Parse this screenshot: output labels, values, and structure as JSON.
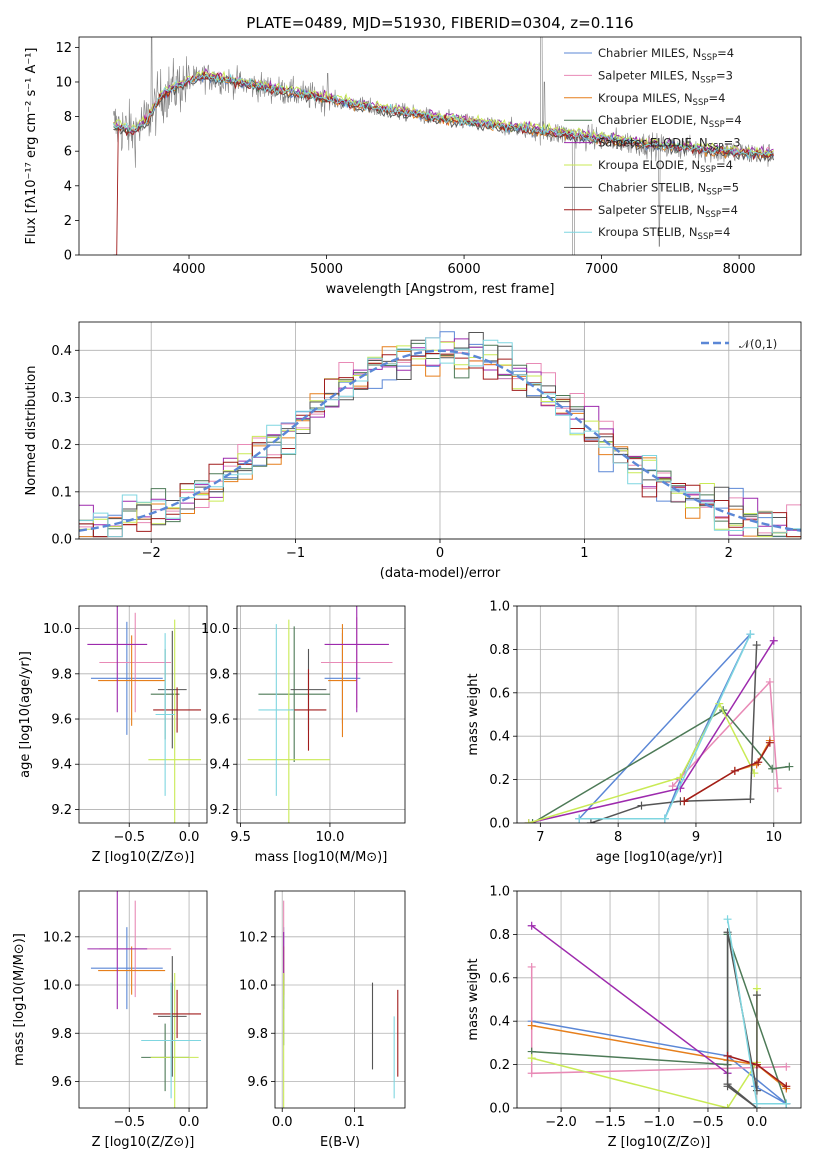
{
  "figure": {
    "title": "PLATE=0489, MJD=51930, FIBERID=0304, z=0.116"
  },
  "colors": {
    "chabrier_miles": "#5b87d6",
    "salpeter_miles": "#e88ab6",
    "kroupa_miles": "#e67f1c",
    "chabrier_elodie": "#4d7a57",
    "salpeter_elodie": "#9d2aad",
    "kroupa_elodie": "#c9ea55",
    "chabrier_stelib": "#555555",
    "salpeter_stelib": "#a01c1c",
    "kroupa_stelib": "#7fd6e0",
    "data": "#808080",
    "gauss": "#5b87d6"
  },
  "chart_data": [
    {
      "id": "spectrum",
      "type": "line",
      "title": "PLATE=0489, MJD=51930, FIBERID=0304, z=0.116",
      "xlabel": "wavelength [Angstrom, rest frame]",
      "ylabel": "Flux [fλ10⁻¹⁷ erg cm⁻² s⁻¹ A⁻¹]",
      "xlim": [
        3200,
        8450
      ],
      "ylim": [
        0,
        12.6
      ],
      "xticks": [
        4000,
        5000,
        6000,
        7000,
        8000
      ],
      "yticks": [
        0,
        2,
        4,
        6,
        8,
        10,
        12
      ],
      "grid": false,
      "legend_placement": "top-right",
      "continuum": {
        "x": [
          3450,
          3600,
          3700,
          3800,
          3900,
          4000,
          4100,
          4200,
          4400,
          4600,
          4800,
          5000,
          5200,
          5400,
          5600,
          5800,
          6000,
          6200,
          6400,
          6600,
          6800,
          7000,
          7200,
          7400,
          7600,
          7800,
          8000,
          8200
        ],
        "y": [
          7.5,
          7.1,
          7.8,
          9.2,
          9.7,
          10.0,
          10.3,
          10.2,
          9.9,
          9.6,
          9.3,
          9.0,
          8.7,
          8.4,
          8.2,
          7.9,
          7.7,
          7.5,
          7.3,
          7.1,
          6.9,
          6.7,
          6.5,
          6.3,
          6.2,
          6.0,
          5.9,
          5.8
        ]
      },
      "series": [
        {
          "name": "Chabrier MILES, N_SSP=4",
          "color_key": "chabrier_miles"
        },
        {
          "name": "Salpeter MILES, N_SSP=3",
          "color_key": "salpeter_miles"
        },
        {
          "name": "Kroupa MILES, N_SSP=4",
          "color_key": "kroupa_miles"
        },
        {
          "name": "Chabrier ELODIE, N_SSP=4",
          "color_key": "chabrier_elodie"
        },
        {
          "name": "Salpeter ELODIE, N_SSP=3",
          "color_key": "salpeter_elodie"
        },
        {
          "name": "Kroupa ELODIE, N_SSP=4",
          "color_key": "kroupa_elodie"
        },
        {
          "name": "Chabrier STELIB, N_SSP=5",
          "color_key": "chabrier_stelib"
        },
        {
          "name": "Salpeter STELIB, N_SSP=4",
          "color_key": "salpeter_stelib"
        },
        {
          "name": "Kroupa STELIB, N_SSP=4",
          "color_key": "kroupa_stelib"
        }
      ]
    },
    {
      "id": "residuals",
      "type": "histogram",
      "xlabel": "(data-model)/error",
      "ylabel": "Normed distribution",
      "xlim": [
        -2.5,
        2.5
      ],
      "ylim": [
        0,
        0.46
      ],
      "xticks": [
        -2,
        -1,
        0,
        1,
        2
      ],
      "yticks": [
        0.0,
        0.1,
        0.2,
        0.3,
        0.4
      ],
      "grid": true,
      "legend_placement": "top-right",
      "legend_label": "𝒩(0,1)",
      "gaussian": {
        "mean": 0,
        "sigma": 1,
        "scale": 0.399
      }
    },
    {
      "id": "age_metal",
      "type": "errorbar",
      "xlabel": "Z [log10(Z/Z⊙)]",
      "ylabel": "age [log10(age/yr)]",
      "xlim": [
        -0.92,
        0.15
      ],
      "ylim": [
        9.14,
        10.1
      ],
      "xticks": [
        -0.5,
        0.0
      ],
      "yticks": [
        9.2,
        9.4,
        9.6,
        9.8,
        10.0
      ],
      "grid": true,
      "points": [
        {
          "x": -0.52,
          "y": 9.78,
          "xerr": 0.3,
          "yerr": 0.25,
          "color_key": "chabrier_miles"
        },
        {
          "x": -0.45,
          "y": 9.85,
          "xerr": 0.3,
          "yerr": 0.22,
          "color_key": "salpeter_miles"
        },
        {
          "x": -0.48,
          "y": 9.77,
          "xerr": 0.28,
          "yerr": 0.2,
          "color_key": "kroupa_miles"
        },
        {
          "x": -0.2,
          "y": 9.71,
          "xerr": 0.12,
          "yerr": 0.2,
          "color_key": "chabrier_elodie"
        },
        {
          "x": -0.6,
          "y": 9.93,
          "xerr": 0.25,
          "yerr": 0.3,
          "color_key": "salpeter_elodie"
        },
        {
          "x": -0.12,
          "y": 9.42,
          "xerr": 0.22,
          "yerr": 0.62,
          "color_key": "kroupa_elodie"
        },
        {
          "x": -0.14,
          "y": 9.73,
          "xerr": 0.12,
          "yerr": 0.26,
          "color_key": "chabrier_stelib"
        },
        {
          "x": -0.1,
          "y": 9.64,
          "xerr": 0.2,
          "yerr": 0.1,
          "color_key": "salpeter_stelib"
        },
        {
          "x": -0.2,
          "y": 9.62,
          "xerr": 0.08,
          "yerr": 0.36,
          "color_key": "kroupa_stelib"
        }
      ]
    },
    {
      "id": "age_mass",
      "type": "errorbar",
      "xlabel": "mass [log10(M/M⊙)]",
      "ylabel": "",
      "xlim": [
        9.48,
        10.42
      ],
      "ylim": [
        9.14,
        10.1
      ],
      "xticks": [
        9.5,
        10.0
      ],
      "yticks": [
        9.2,
        9.4,
        9.6,
        9.8,
        10.0
      ],
      "grid": true,
      "points": [
        {
          "x": 10.07,
          "y": 9.78,
          "xerr": 0.1,
          "yerr": 0.2,
          "color_key": "chabrier_miles"
        },
        {
          "x": 10.15,
          "y": 9.85,
          "xerr": 0.2,
          "yerr": 0.2,
          "color_key": "salpeter_miles"
        },
        {
          "x": 10.07,
          "y": 9.77,
          "xerr": 0.08,
          "yerr": 0.25,
          "color_key": "kroupa_miles"
        },
        {
          "x": 9.8,
          "y": 9.71,
          "xerr": 0.2,
          "yerr": 0.3,
          "color_key": "chabrier_elodie"
        },
        {
          "x": 10.15,
          "y": 9.93,
          "xerr": 0.18,
          "yerr": 0.3,
          "color_key": "salpeter_elodie"
        },
        {
          "x": 9.77,
          "y": 9.42,
          "xerr": 0.23,
          "yerr": 0.62,
          "color_key": "kroupa_elodie"
        },
        {
          "x": 9.88,
          "y": 9.73,
          "xerr": 0.1,
          "yerr": 0.18,
          "color_key": "chabrier_stelib"
        },
        {
          "x": 9.88,
          "y": 9.64,
          "xerr": 0.1,
          "yerr": 0.18,
          "color_key": "salpeter_stelib"
        },
        {
          "x": 9.7,
          "y": 9.64,
          "xerr": 0.1,
          "yerr": 0.38,
          "color_key": "kroupa_stelib"
        }
      ]
    },
    {
      "id": "weight_age",
      "type": "line",
      "xlabel": "age [log10(age/yr)]",
      "ylabel": "mass weight",
      "xlim": [
        6.7,
        10.35
      ],
      "ylim": [
        0,
        1.0
      ],
      "xticks": [
        7,
        8,
        9,
        10
      ],
      "yticks": [
        0.0,
        0.2,
        0.4,
        0.6,
        0.8,
        1.0
      ],
      "grid": true,
      "series": [
        {
          "color_key": "chabrier_miles",
          "x": [
            7.5,
            9.7,
            8.8,
            8.6
          ],
          "y": [
            0.02,
            0.87,
            0.2,
            0.02
          ]
        },
        {
          "color_key": "salpeter_miles",
          "x": [
            8.7,
            9.95,
            10.05
          ],
          "y": [
            0.17,
            0.65,
            0.16
          ]
        },
        {
          "color_key": "kroupa_miles",
          "x": [
            8.85,
            9.5,
            9.78,
            9.95
          ],
          "y": [
            0.1,
            0.24,
            0.27,
            0.38
          ]
        },
        {
          "color_key": "chabrier_elodie",
          "x": [
            6.9,
            9.35,
            9.98,
            10.2
          ],
          "y": [
            0.0,
            0.52,
            0.25,
            0.26
          ]
        },
        {
          "color_key": "salpeter_elodie",
          "x": [
            6.85,
            8.8,
            10.0
          ],
          "y": [
            0.0,
            0.16,
            0.84
          ]
        },
        {
          "color_key": "kroupa_elodie",
          "x": [
            6.85,
            8.8,
            9.3,
            9.75
          ],
          "y": [
            0.0,
            0.21,
            0.55,
            0.23
          ]
        },
        {
          "color_key": "chabrier_stelib",
          "x": [
            7.65,
            8.3,
            8.8,
            9.7,
            9.78
          ],
          "y": [
            0.0,
            0.08,
            0.1,
            0.11,
            0.82
          ]
        },
        {
          "color_key": "salpeter_stelib",
          "x": [
            8.85,
            9.5,
            9.8,
            9.95
          ],
          "y": [
            0.1,
            0.24,
            0.28,
            0.37
          ]
        },
        {
          "color_key": "kroupa_stelib",
          "x": [
            7.5,
            8.6,
            9.7
          ],
          "y": [
            0.02,
            0.02,
            0.87
          ]
        }
      ]
    },
    {
      "id": "mass_metal",
      "type": "errorbar",
      "xlabel": "Z [log10(Z/Z⊙)]",
      "ylabel": "mass [log10(M/M⊙)]",
      "xlim": [
        -0.92,
        0.15
      ],
      "ylim": [
        9.49,
        10.39
      ],
      "xticks": [
        -0.5,
        0.0
      ],
      "yticks": [
        9.6,
        9.8,
        10.0,
        10.2
      ],
      "grid": true,
      "points": [
        {
          "x": -0.52,
          "y": 10.07,
          "xerr": 0.3,
          "yerr": 0.17,
          "color_key": "chabrier_miles"
        },
        {
          "x": -0.45,
          "y": 10.15,
          "xerr": 0.3,
          "yerr": 0.2,
          "color_key": "salpeter_miles"
        },
        {
          "x": -0.48,
          "y": 10.06,
          "xerr": 0.28,
          "yerr": 0.1,
          "color_key": "kroupa_miles"
        },
        {
          "x": -0.2,
          "y": 9.7,
          "xerr": 0.2,
          "yerr": 0.14,
          "color_key": "chabrier_elodie"
        },
        {
          "x": -0.6,
          "y": 10.15,
          "xerr": 0.25,
          "yerr": 0.25,
          "color_key": "salpeter_elodie"
        },
        {
          "x": -0.12,
          "y": 9.7,
          "xerr": 0.2,
          "yerr": 0.35,
          "color_key": "kroupa_elodie"
        },
        {
          "x": -0.14,
          "y": 9.87,
          "xerr": 0.12,
          "yerr": 0.25,
          "color_key": "chabrier_stelib"
        },
        {
          "x": -0.1,
          "y": 9.88,
          "xerr": 0.2,
          "yerr": 0.1,
          "color_key": "salpeter_stelib"
        },
        {
          "x": -0.15,
          "y": 9.77,
          "xerr": 0.25,
          "yerr": 0.24,
          "color_key": "kroupa_stelib"
        }
      ]
    },
    {
      "id": "mass_ebv",
      "type": "errorbar",
      "xlabel": "E(B-V)",
      "ylabel": "",
      "xlim": [
        -0.01,
        0.17
      ],
      "ylim": [
        9.49,
        10.39
      ],
      "xticks": [
        0.0,
        0.1
      ],
      "yticks": [
        9.6,
        9.8,
        10.0,
        10.2
      ],
      "grid": true,
      "points": [
        {
          "x": 0.002,
          "y": 10.07,
          "xerr": 0,
          "yerr": 0.17,
          "color_key": "chabrier_miles"
        },
        {
          "x": 0.002,
          "y": 10.15,
          "xerr": 0,
          "yerr": 0.2,
          "color_key": "salpeter_miles"
        },
        {
          "x": 0.002,
          "y": 10.06,
          "xerr": 0,
          "yerr": 0.1,
          "color_key": "kroupa_miles"
        },
        {
          "x": 0.002,
          "y": 9.9,
          "xerr": 0,
          "yerr": 0.15,
          "color_key": "chabrier_elodie"
        },
        {
          "x": 0.002,
          "y": 10.12,
          "xerr": 0,
          "yerr": 0.1,
          "color_key": "salpeter_elodie"
        },
        {
          "x": 0.002,
          "y": 9.7,
          "xerr": 0,
          "yerr": 0.35,
          "color_key": "kroupa_elodie"
        },
        {
          "x": 0.125,
          "y": 9.83,
          "xerr": 0,
          "yerr": 0.18,
          "color_key": "chabrier_stelib"
        },
        {
          "x": 0.16,
          "y": 9.8,
          "xerr": 0,
          "yerr": 0.18,
          "color_key": "salpeter_stelib"
        },
        {
          "x": 0.155,
          "y": 9.7,
          "xerr": 0,
          "yerr": 0.17,
          "color_key": "kroupa_stelib"
        }
      ]
    },
    {
      "id": "weight_metal",
      "type": "line",
      "xlabel": "Z [log10(Z/Z⊙)]",
      "ylabel": "mass weight",
      "xlim": [
        -2.45,
        0.45
      ],
      "ylim": [
        0,
        1.0
      ],
      "xticks": [
        -2.0,
        -1.5,
        -1.0,
        -0.5,
        0.0
      ],
      "yticks": [
        0.0,
        0.2,
        0.4,
        0.6,
        0.8,
        1.0
      ],
      "grid": true,
      "series": [
        {
          "color_key": "chabrier_miles",
          "x": [
            -2.3,
            -0.3,
            0.3,
            -0.02
          ],
          "y": [
            0.4,
            0.24,
            0.02,
            0.1
          ]
        },
        {
          "color_key": "salpeter_miles",
          "x": [
            -2.3,
            -2.3,
            0.3
          ],
          "y": [
            0.65,
            0.16,
            0.19
          ]
        },
        {
          "color_key": "kroupa_miles",
          "x": [
            -2.3,
            -0.3,
            0.0,
            0.3
          ],
          "y": [
            0.38,
            0.22,
            0.2,
            0.09
          ]
        },
        {
          "color_key": "chabrier_elodie",
          "x": [
            -2.3,
            -0.3,
            -0.3,
            0.3
          ],
          "y": [
            0.26,
            0.2,
            0.8,
            0.02
          ]
        },
        {
          "color_key": "salpeter_elodie",
          "x": [
            -2.3,
            -0.3
          ],
          "y": [
            0.84,
            0.16
          ]
        },
        {
          "color_key": "kroupa_elodie",
          "x": [
            -2.3,
            -0.3,
            0.0,
            0.0
          ],
          "y": [
            0.23,
            0.0,
            0.21,
            0.55
          ]
        },
        {
          "color_key": "chabrier_stelib",
          "x": [
            -0.3,
            0.0,
            -0.3,
            -0.3,
            0.0,
            0.0
          ],
          "y": [
            0.1,
            0.0,
            0.11,
            0.81,
            0.08,
            0.52
          ]
        },
        {
          "color_key": "salpeter_stelib",
          "x": [
            -0.3,
            0.0,
            0.3
          ],
          "y": [
            0.24,
            0.2,
            0.1
          ]
        },
        {
          "color_key": "kroupa_stelib",
          "x": [
            -0.3,
            0.0,
            0.3
          ],
          "y": [
            0.87,
            0.02,
            0.02
          ]
        }
      ]
    }
  ]
}
